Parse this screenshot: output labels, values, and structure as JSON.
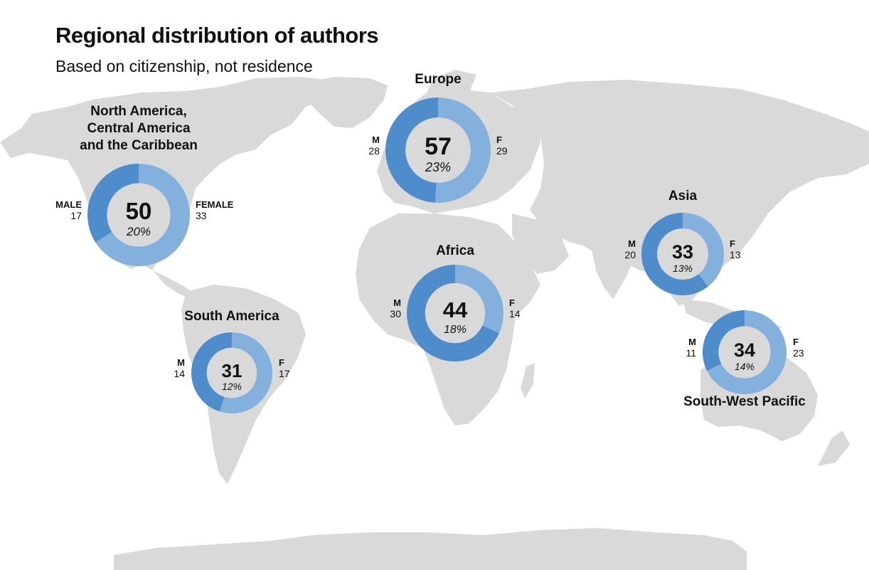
{
  "header": {
    "title": "Regional distribution of authors",
    "subtitle": "Based on citizenship, not residence"
  },
  "colors": {
    "male": "#4f8ccb",
    "female": "#84b0dd",
    "land": "#d9d9d9",
    "donut_center": "#d9d9d9"
  },
  "chart_data": {
    "type": "pie",
    "variant": "donut",
    "title": "Regional distribution of authors",
    "subtitle": "Based on citizenship, not residence",
    "series_labels": {
      "male": "MALE",
      "female": "FEMALE"
    },
    "regions": [
      {
        "id": "north-america",
        "name": "North America, Central America and the Caribbean",
        "name_lines": [
          "North America,",
          "Central America",
          "and the Caribbean"
        ],
        "total": 50,
        "percent": "20%",
        "male": 17,
        "female": 33,
        "male_label": "MALE",
        "female_label": "FEMALE"
      },
      {
        "id": "europe",
        "name": "Europe",
        "name_lines": [
          "Europe"
        ],
        "total": 57,
        "percent": "23%",
        "male": 28,
        "female": 29,
        "male_label": "M",
        "female_label": "F"
      },
      {
        "id": "asia",
        "name": "Asia",
        "name_lines": [
          "Asia"
        ],
        "total": 33,
        "percent": "13%",
        "male": 20,
        "female": 13,
        "male_label": "M",
        "female_label": "F"
      },
      {
        "id": "africa",
        "name": "Africa",
        "name_lines": [
          "Africa"
        ],
        "total": 44,
        "percent": "18%",
        "male": 30,
        "female": 14,
        "male_label": "M",
        "female_label": "F"
      },
      {
        "id": "south-america",
        "name": "South America",
        "name_lines": [
          "South America"
        ],
        "total": 31,
        "percent": "12%",
        "male": 14,
        "female": 17,
        "male_label": "M",
        "female_label": "F"
      },
      {
        "id": "south-west-pacific",
        "name": "South-West Pacific",
        "name_lines": [
          "South-West Pacific"
        ],
        "total": 34,
        "percent": "14%",
        "male": 11,
        "female": 23,
        "male_label": "M",
        "female_label": "F"
      }
    ]
  }
}
